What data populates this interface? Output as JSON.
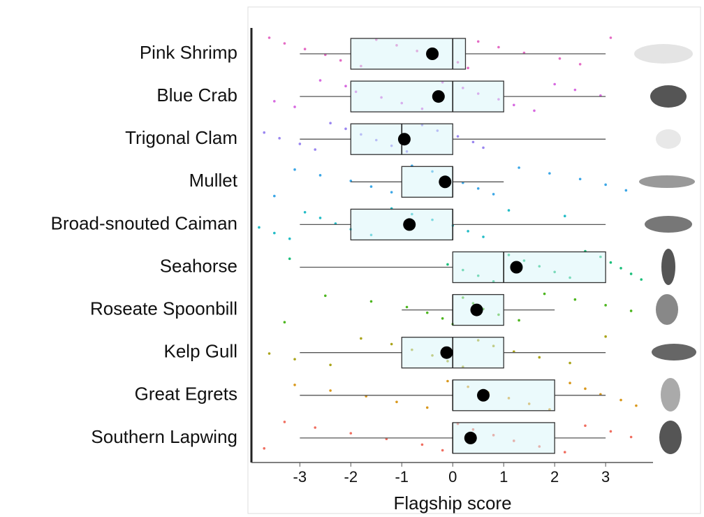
{
  "chart_data": {
    "type": "boxplot",
    "xlabel": "Flagship score",
    "xlim": [
      -3.95,
      3.93
    ],
    "xticks": [
      -3,
      -2,
      -1,
      0,
      1,
      2,
      3
    ],
    "series": [
      {
        "name": "Pink Shrimp",
        "color": "#e46bc4",
        "whislo": -3,
        "q1": -2,
        "med": 0,
        "q3": 0.25,
        "whishi": 3,
        "mean": -0.4,
        "points": [
          -3.6,
          -3.3,
          -2.9,
          -2.5,
          -2.2,
          -1.8,
          -1.5,
          -1.1,
          -0.7,
          -0.3,
          0.1,
          0.3,
          0.5,
          0.9,
          1.4,
          2.1,
          2.5,
          3.1
        ]
      },
      {
        "name": "Blue Crab",
        "color": "#d769e0",
        "whislo": -3,
        "q1": -2,
        "med": 0,
        "q3": 1,
        "whishi": 3,
        "mean": -0.28,
        "points": [
          -3.5,
          -3.1,
          -2.6,
          -2.1,
          -1.9,
          -1.4,
          -1.0,
          -0.6,
          -0.2,
          0.2,
          0.5,
          0.9,
          1.2,
          1.6,
          2.0,
          2.4,
          2.9
        ]
      },
      {
        "name": "Trigonal Clam",
        "color": "#9a86f0",
        "whislo": -3,
        "q1": -2,
        "med": -1,
        "q3": 0,
        "whishi": 3,
        "mean": -0.95,
        "points": [
          -3.7,
          -3.4,
          -3.0,
          -2.7,
          -2.4,
          -2.1,
          -1.8,
          -1.5,
          -1.2,
          -0.9,
          -0.6,
          -0.3,
          0.1,
          0.4,
          0.6
        ]
      },
      {
        "name": "Mullet",
        "color": "#3ba6e6",
        "whislo": -2,
        "q1": -1,
        "med": 0,
        "q3": 0,
        "whishi": 1,
        "mean": -0.15,
        "points": [
          -3.5,
          -3.1,
          -2.6,
          -2.0,
          -1.6,
          -1.2,
          -0.8,
          -0.4,
          -0.1,
          0.2,
          0.5,
          0.8,
          1.3,
          1.9,
          2.5,
          3.0,
          3.4
        ]
      },
      {
        "name": "Broad-snouted Caiman",
        "color": "#22bcc6",
        "whislo": -3,
        "q1": -2,
        "med": 0,
        "q3": 0,
        "whishi": 3,
        "mean": -0.85,
        "points": [
          -3.8,
          -3.5,
          -3.2,
          -2.9,
          -2.6,
          -2.3,
          -2.0,
          -1.6,
          -1.2,
          -0.8,
          -0.4,
          0.0,
          0.3,
          0.6,
          1.1,
          2.2
        ]
      },
      {
        "name": "Seahorse",
        "color": "#1cbf7b",
        "whislo": -3,
        "q1": 0,
        "med": 1,
        "q3": 3,
        "whishi": 3,
        "mean": 1.25,
        "points": [
          -3.2,
          -0.1,
          0.2,
          0.5,
          0.8,
          1.1,
          1.4,
          1.7,
          2.0,
          2.3,
          2.6,
          2.9,
          3.1,
          3.3,
          3.5,
          3.7
        ]
      },
      {
        "name": "Roseate Spoonbill",
        "color": "#4db61f",
        "whislo": -1,
        "q1": 0,
        "med": 0,
        "q3": 1,
        "whishi": 2,
        "mean": 0.47,
        "points": [
          -3.3,
          -2.5,
          -1.6,
          -0.9,
          -0.5,
          -0.2,
          0.0,
          0.2,
          0.4,
          0.6,
          0.9,
          1.3,
          1.8,
          2.4,
          3.0,
          3.5
        ]
      },
      {
        "name": "Kelp Gull",
        "color": "#aaa41a",
        "whislo": -3,
        "q1": -1,
        "med": 0,
        "q3": 1,
        "whishi": 3,
        "mean": -0.12,
        "points": [
          -3.6,
          -3.1,
          -2.4,
          -1.8,
          -1.2,
          -0.8,
          -0.4,
          -0.1,
          0.2,
          0.5,
          0.8,
          1.2,
          1.7,
          2.3,
          3.0
        ]
      },
      {
        "name": "Great Egrets",
        "color": "#d9981c",
        "whislo": -3,
        "q1": 0,
        "med": 0,
        "q3": 2,
        "whishi": 3,
        "mean": 0.6,
        "points": [
          -3.1,
          -2.4,
          -1.7,
          -1.1,
          -0.5,
          -0.1,
          0.3,
          0.7,
          1.1,
          1.5,
          1.9,
          2.3,
          2.6,
          2.9,
          3.3,
          3.6
        ]
      },
      {
        "name": "Southern Lapwing",
        "color": "#f06e60",
        "whislo": -3,
        "q1": 0,
        "med": 0,
        "q3": 2,
        "whishi": 3,
        "mean": 0.35,
        "points": [
          -3.7,
          -3.3,
          -2.7,
          -2.0,
          -1.3,
          -0.6,
          -0.2,
          0.1,
          0.4,
          0.8,
          1.2,
          1.7,
          2.2,
          2.6,
          3.1,
          3.5
        ]
      }
    ]
  }
}
